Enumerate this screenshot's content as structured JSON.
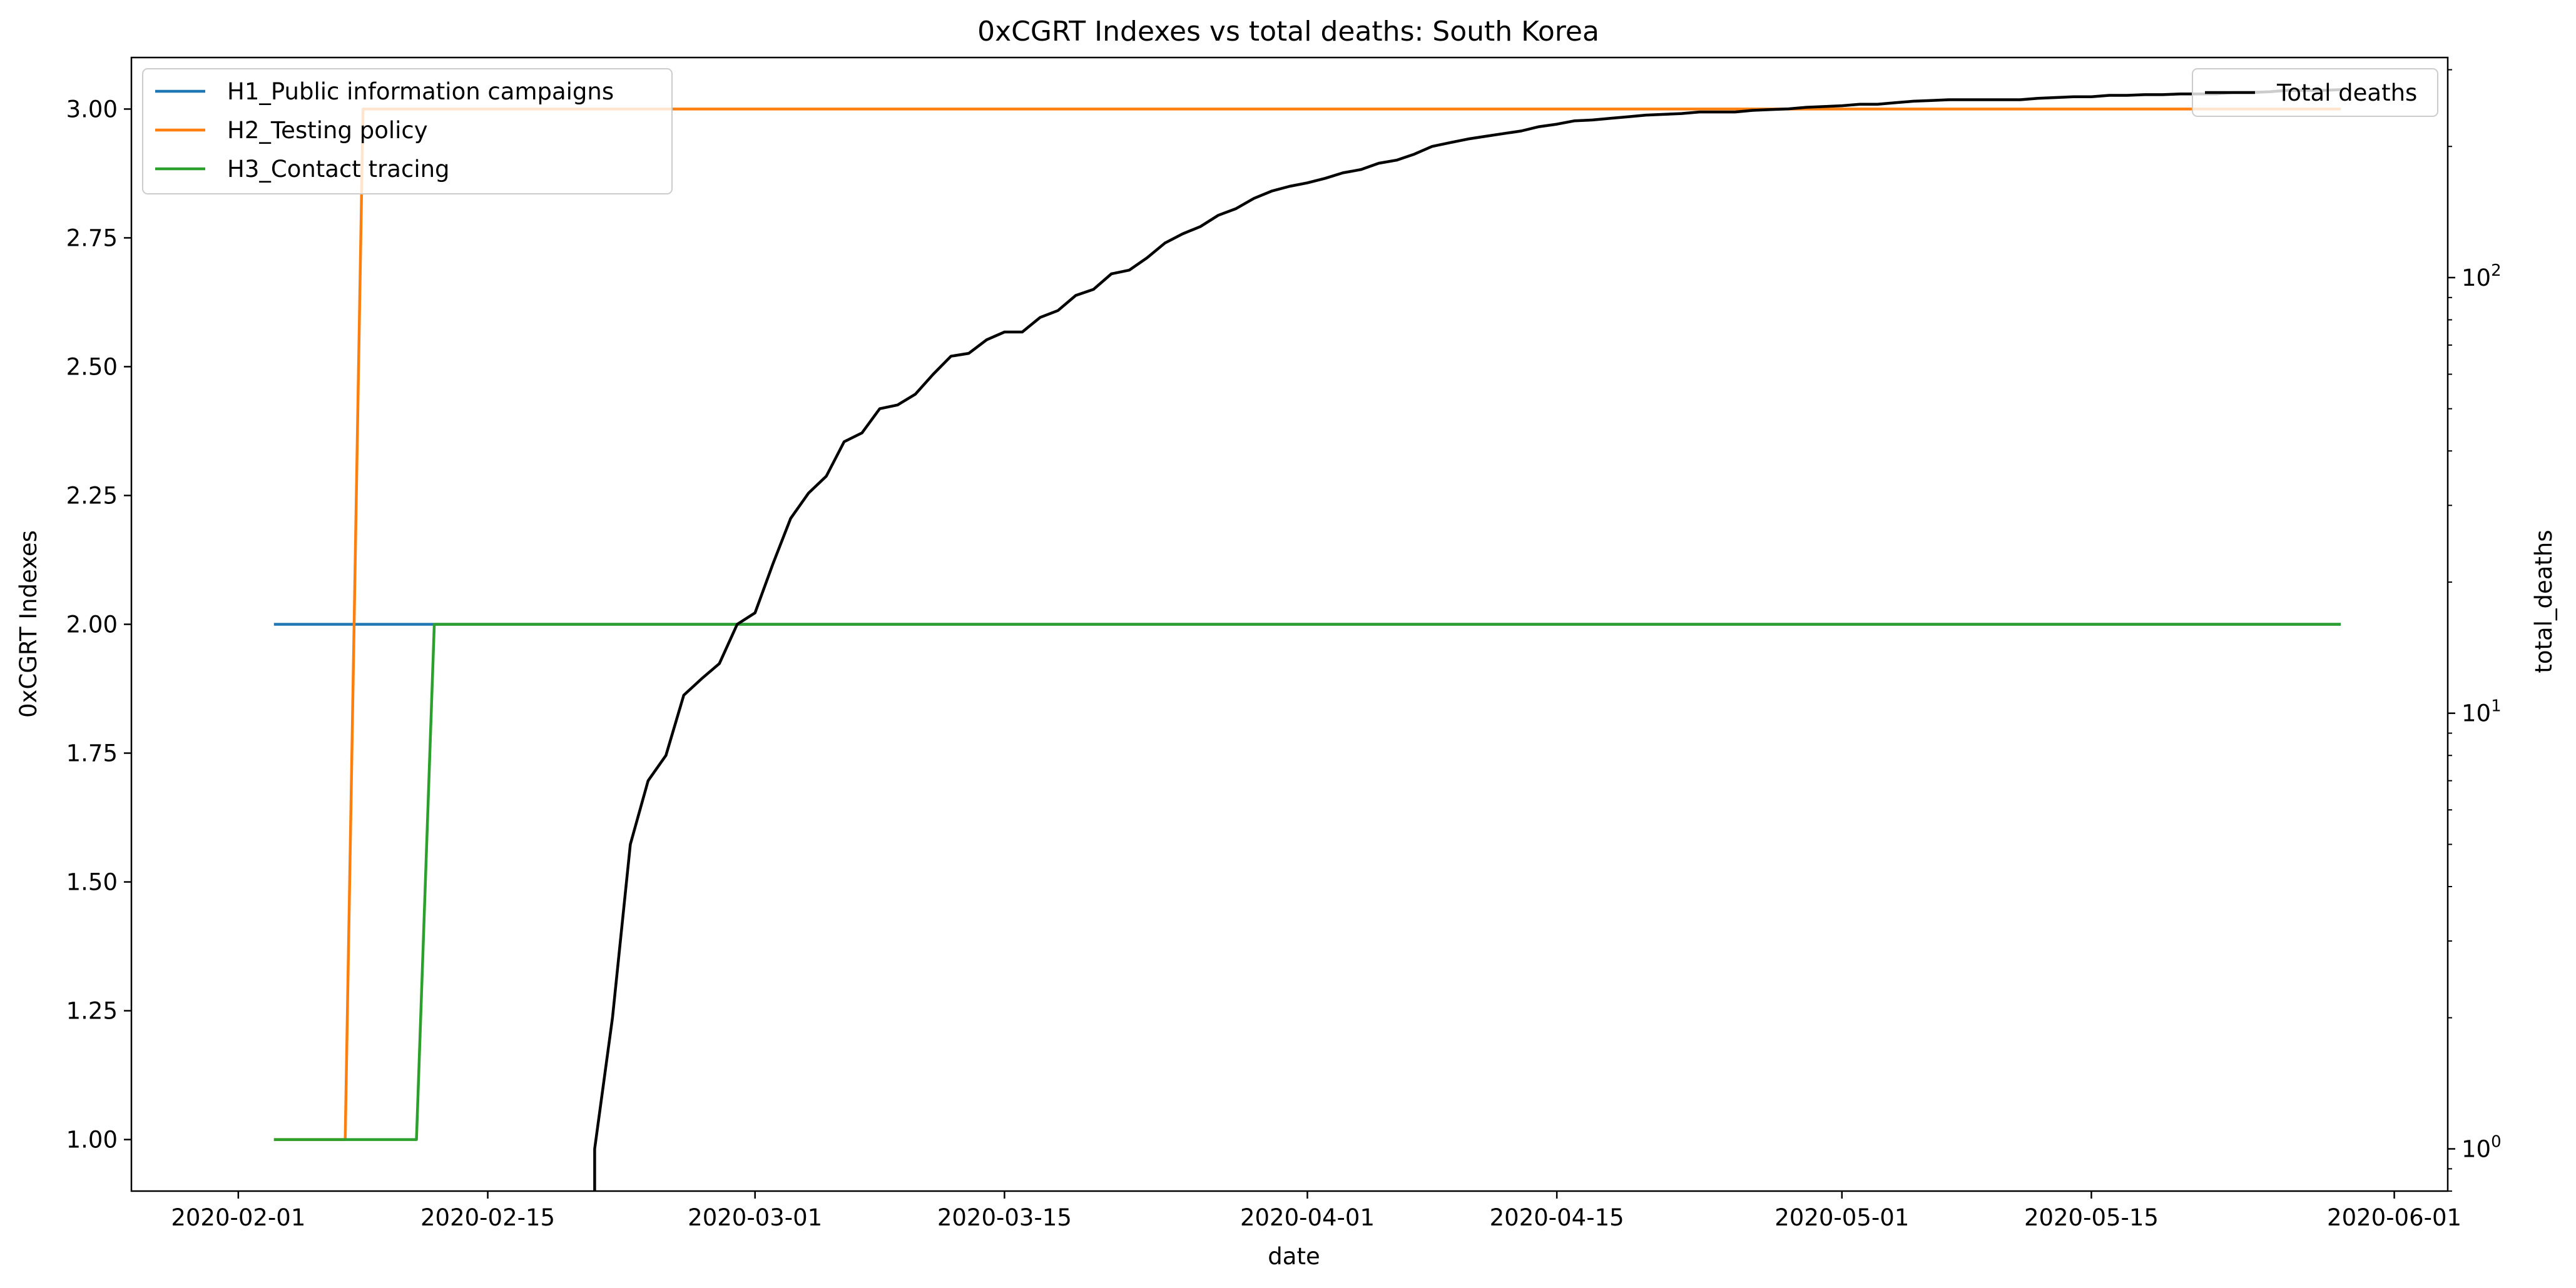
{
  "chart_data": {
    "type": "line",
    "title": "0xCGRT Indexes vs total deaths:  South Korea",
    "xlabel": "date",
    "ylabel": "0xCGRT Indexes",
    "y2label": "total_deaths",
    "x_tick_labels": [
      "2020-02-01",
      "2020-02-15",
      "2020-03-01",
      "2020-03-15",
      "2020-04-01",
      "2020-04-15",
      "2020-05-01",
      "2020-05-15",
      "2020-06-01"
    ],
    "xlim": [
      "2020-01-26",
      "2020-06-04"
    ],
    "ylim": [
      0.9,
      3.1
    ],
    "y_ticks": [
      1.0,
      1.25,
      1.5,
      1.75,
      2.0,
      2.25,
      2.5,
      2.75,
      3.0
    ],
    "y_tick_labels": [
      "1.00",
      "1.25",
      "1.50",
      "1.75",
      "2.00",
      "2.25",
      "2.50",
      "2.75",
      "3.00"
    ],
    "y2_scale": "log",
    "y2lim": [
      0.8,
      320
    ],
    "y2_ticks": [
      1,
      10,
      100
    ],
    "y2_tick_labels": [
      "10",
      "10",
      "10"
    ],
    "y2_tick_exponents": [
      "0",
      "1",
      "2"
    ],
    "legend_left_position": "upper-left",
    "legend_right_position": "upper-right",
    "series": [
      {
        "name": "H1_Public information campaigns",
        "axis": "left",
        "color": "#1f77b4",
        "points": [
          [
            "2020-02-03",
            2
          ],
          [
            "2020-05-29",
            2
          ]
        ]
      },
      {
        "name": "H2_Testing policy",
        "axis": "left",
        "color": "#ff7f0e",
        "points": [
          [
            "2020-02-03",
            1
          ],
          [
            "2020-02-07",
            1
          ],
          [
            "2020-02-08",
            3
          ],
          [
            "2020-05-29",
            3
          ]
        ]
      },
      {
        "name": "H3_Contact tracing",
        "axis": "left",
        "color": "#2ca02c",
        "points": [
          [
            "2020-02-03",
            1
          ],
          [
            "2020-02-11",
            1
          ],
          [
            "2020-02-12",
            2
          ],
          [
            "2020-05-29",
            2
          ]
        ]
      },
      {
        "name": "Total deaths",
        "axis": "right",
        "color": "#000000",
        "points": [
          [
            "2020-02-21",
            0.5
          ],
          [
            "2020-02-21",
            1
          ],
          [
            "2020-02-22",
            2
          ],
          [
            "2020-02-23",
            5
          ],
          [
            "2020-02-24",
            7
          ],
          [
            "2020-02-25",
            8
          ],
          [
            "2020-02-26",
            11
          ],
          [
            "2020-02-27",
            12
          ],
          [
            "2020-02-28",
            13
          ],
          [
            "2020-02-29",
            16
          ],
          [
            "2020-03-01",
            17
          ],
          [
            "2020-03-02",
            22
          ],
          [
            "2020-03-03",
            28
          ],
          [
            "2020-03-04",
            32
          ],
          [
            "2020-03-05",
            35
          ],
          [
            "2020-03-06",
            42
          ],
          [
            "2020-03-07",
            44
          ],
          [
            "2020-03-08",
            50
          ],
          [
            "2020-03-09",
            51
          ],
          [
            "2020-03-10",
            54
          ],
          [
            "2020-03-11",
            60
          ],
          [
            "2020-03-12",
            66
          ],
          [
            "2020-03-13",
            67
          ],
          [
            "2020-03-14",
            72
          ],
          [
            "2020-03-15",
            75
          ],
          [
            "2020-03-16",
            75
          ],
          [
            "2020-03-17",
            81
          ],
          [
            "2020-03-18",
            84
          ],
          [
            "2020-03-19",
            91
          ],
          [
            "2020-03-20",
            94
          ],
          [
            "2020-03-21",
            102
          ],
          [
            "2020-03-22",
            104
          ],
          [
            "2020-03-23",
            111
          ],
          [
            "2020-03-24",
            120
          ],
          [
            "2020-03-25",
            126
          ],
          [
            "2020-03-26",
            131
          ],
          [
            "2020-03-27",
            139
          ],
          [
            "2020-03-28",
            144
          ],
          [
            "2020-03-29",
            152
          ],
          [
            "2020-03-30",
            158
          ],
          [
            "2020-03-31",
            162
          ],
          [
            "2020-04-01",
            165
          ],
          [
            "2020-04-02",
            169
          ],
          [
            "2020-04-03",
            174
          ],
          [
            "2020-04-04",
            177
          ],
          [
            "2020-04-05",
            183
          ],
          [
            "2020-04-06",
            186
          ],
          [
            "2020-04-07",
            192
          ],
          [
            "2020-04-08",
            200
          ],
          [
            "2020-04-09",
            204
          ],
          [
            "2020-04-10",
            208
          ],
          [
            "2020-04-11",
            211
          ],
          [
            "2020-04-12",
            214
          ],
          [
            "2020-04-13",
            217
          ],
          [
            "2020-04-14",
            222
          ],
          [
            "2020-04-15",
            225
          ],
          [
            "2020-04-16",
            229
          ],
          [
            "2020-04-17",
            230
          ],
          [
            "2020-04-18",
            232
          ],
          [
            "2020-04-19",
            234
          ],
          [
            "2020-04-20",
            236
          ],
          [
            "2020-04-21",
            237
          ],
          [
            "2020-04-22",
            238
          ],
          [
            "2020-04-23",
            240
          ],
          [
            "2020-04-24",
            240
          ],
          [
            "2020-04-25",
            240
          ],
          [
            "2020-04-26",
            242
          ],
          [
            "2020-04-27",
            243
          ],
          [
            "2020-04-28",
            244
          ],
          [
            "2020-04-29",
            246
          ],
          [
            "2020-04-30",
            247
          ],
          [
            "2020-05-01",
            248
          ],
          [
            "2020-05-02",
            250
          ],
          [
            "2020-05-03",
            250
          ],
          [
            "2020-05-04",
            252
          ],
          [
            "2020-05-05",
            254
          ],
          [
            "2020-05-06",
            255
          ],
          [
            "2020-05-07",
            256
          ],
          [
            "2020-05-08",
            256
          ],
          [
            "2020-05-09",
            256
          ],
          [
            "2020-05-10",
            256
          ],
          [
            "2020-05-11",
            256
          ],
          [
            "2020-05-12",
            258
          ],
          [
            "2020-05-13",
            259
          ],
          [
            "2020-05-14",
            260
          ],
          [
            "2020-05-15",
            260
          ],
          [
            "2020-05-16",
            262
          ],
          [
            "2020-05-17",
            262
          ],
          [
            "2020-05-18",
            263
          ],
          [
            "2020-05-19",
            263
          ],
          [
            "2020-05-20",
            264
          ],
          [
            "2020-05-21",
            264
          ],
          [
            "2020-05-22",
            264
          ],
          [
            "2020-05-23",
            266
          ],
          [
            "2020-05-24",
            266
          ],
          [
            "2020-05-25",
            267
          ],
          [
            "2020-05-26",
            269
          ],
          [
            "2020-05-27",
            269
          ],
          [
            "2020-05-28",
            269
          ],
          [
            "2020-05-29",
            270
          ]
        ]
      }
    ]
  }
}
